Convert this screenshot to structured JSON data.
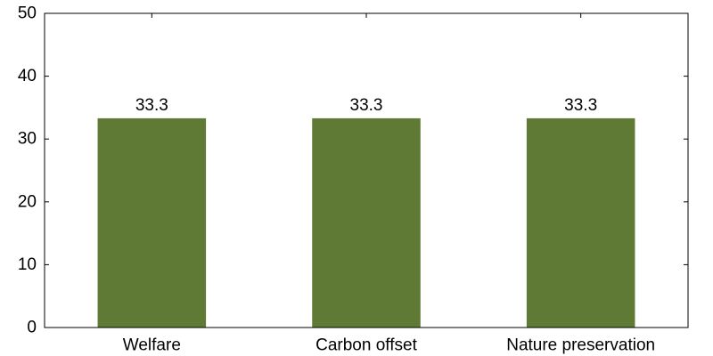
{
  "chart_data": {
    "type": "bar",
    "categories": [
      "Welfare",
      "Carbon offset",
      "Nature preservation"
    ],
    "values": [
      33.3,
      33.3,
      33.3
    ],
    "data_labels": [
      "33.3",
      "33.3",
      "33.3"
    ],
    "title": "",
    "xlabel": "",
    "ylabel": "",
    "ylim": [
      0,
      50
    ],
    "yticks": [
      0,
      10,
      20,
      30,
      40,
      50
    ],
    "bar_color": "#5e7a35",
    "grid": false,
    "ticks_mirrored": true
  }
}
